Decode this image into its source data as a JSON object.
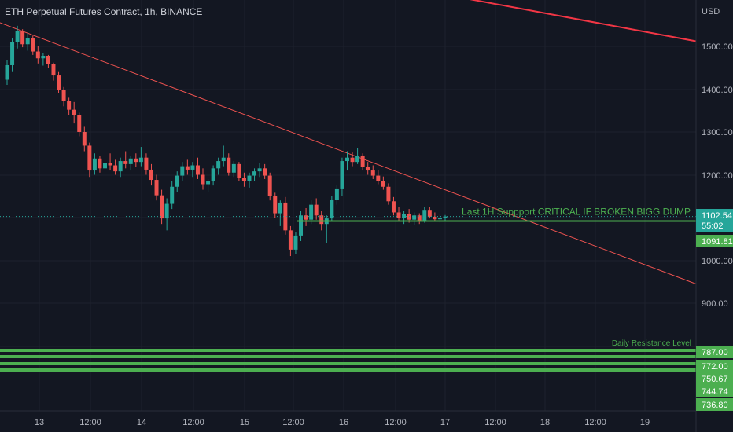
{
  "header": {
    "title": "ETH Perpetual Futures Contract, 1h, BINANCE"
  },
  "chart_data": {
    "type": "candlestick",
    "currency_label": "USD",
    "y_ticks": [
      "1500.00",
      "1400.00",
      "1300.00",
      "1200.00",
      "1000.00",
      "900.00"
    ],
    "x_ticks": [
      "13",
      "12:00",
      "14",
      "12:00",
      "15",
      "12:00",
      "16",
      "12:00",
      "17",
      "12:00",
      "18",
      "12:00",
      "19"
    ],
    "colors": {
      "up": "#26a69a",
      "down": "#ef5350",
      "trendline": "#ef5350",
      "support": "#4caf50",
      "background": "#131722"
    },
    "candles": [
      [
        1422,
        1467,
        1410,
        1456
      ],
      [
        1456,
        1520,
        1440,
        1510
      ],
      [
        1510,
        1548,
        1495,
        1535
      ],
      [
        1535,
        1540,
        1498,
        1505
      ],
      [
        1505,
        1530,
        1490,
        1520
      ],
      [
        1520,
        1525,
        1480,
        1488
      ],
      [
        1488,
        1500,
        1460,
        1472
      ],
      [
        1472,
        1485,
        1455,
        1478
      ],
      [
        1478,
        1480,
        1450,
        1458
      ],
      [
        1458,
        1462,
        1420,
        1432
      ],
      [
        1432,
        1440,
        1390,
        1398
      ],
      [
        1398,
        1405,
        1360,
        1372
      ],
      [
        1372,
        1380,
        1340,
        1352
      ],
      [
        1352,
        1370,
        1320,
        1340
      ],
      [
        1340,
        1345,
        1290,
        1300
      ],
      [
        1300,
        1312,
        1255,
        1268
      ],
      [
        1268,
        1275,
        1195,
        1210
      ],
      [
        1210,
        1250,
        1200,
        1238
      ],
      [
        1238,
        1245,
        1205,
        1215
      ],
      [
        1215,
        1240,
        1205,
        1228
      ],
      [
        1228,
        1250,
        1210,
        1222
      ],
      [
        1222,
        1235,
        1200,
        1208
      ],
      [
        1208,
        1240,
        1195,
        1232
      ],
      [
        1232,
        1255,
        1215,
        1225
      ],
      [
        1225,
        1245,
        1210,
        1238
      ],
      [
        1238,
        1250,
        1218,
        1230
      ],
      [
        1230,
        1265,
        1220,
        1240
      ],
      [
        1240,
        1250,
        1200,
        1212
      ],
      [
        1212,
        1225,
        1175,
        1188
      ],
      [
        1188,
        1200,
        1140,
        1152
      ],
      [
        1152,
        1165,
        1085,
        1098
      ],
      [
        1098,
        1145,
        1070,
        1132
      ],
      [
        1132,
        1185,
        1120,
        1172
      ],
      [
        1172,
        1208,
        1160,
        1198
      ],
      [
        1198,
        1230,
        1185,
        1220
      ],
      [
        1220,
        1235,
        1200,
        1212
      ],
      [
        1212,
        1230,
        1195,
        1222
      ],
      [
        1222,
        1240,
        1190,
        1200
      ],
      [
        1200,
        1215,
        1165,
        1178
      ],
      [
        1178,
        1190,
        1160,
        1185
      ],
      [
        1185,
        1222,
        1175,
        1215
      ],
      [
        1215,
        1240,
        1200,
        1232
      ],
      [
        1232,
        1268,
        1220,
        1240
      ],
      [
        1240,
        1250,
        1198,
        1205
      ],
      [
        1205,
        1232,
        1195,
        1225
      ],
      [
        1225,
        1230,
        1185,
        1192
      ],
      [
        1192,
        1205,
        1172,
        1185
      ],
      [
        1185,
        1205,
        1170,
        1198
      ],
      [
        1198,
        1215,
        1185,
        1208
      ],
      [
        1208,
        1228,
        1195,
        1215
      ],
      [
        1215,
        1225,
        1190,
        1198
      ],
      [
        1198,
        1205,
        1140,
        1150
      ],
      [
        1150,
        1158,
        1100,
        1110
      ],
      [
        1110,
        1140,
        1080,
        1135
      ],
      [
        1135,
        1148,
        1060,
        1070
      ],
      [
        1070,
        1080,
        1010,
        1025
      ],
      [
        1025,
        1065,
        1015,
        1058
      ],
      [
        1058,
        1115,
        1045,
        1105
      ],
      [
        1105,
        1122,
        1080,
        1095
      ],
      [
        1095,
        1140,
        1085,
        1130
      ],
      [
        1130,
        1145,
        1095,
        1105
      ],
      [
        1105,
        1115,
        1070,
        1085
      ],
      [
        1085,
        1105,
        1040,
        1098
      ],
      [
        1098,
        1150,
        1090,
        1142
      ],
      [
        1142,
        1175,
        1130,
        1168
      ],
      [
        1168,
        1240,
        1150,
        1232
      ],
      [
        1232,
        1255,
        1210,
        1240
      ],
      [
        1240,
        1252,
        1220,
        1230
      ],
      [
        1230,
        1262,
        1225,
        1245
      ],
      [
        1245,
        1250,
        1210,
        1218
      ],
      [
        1218,
        1230,
        1200,
        1210
      ],
      [
        1210,
        1222,
        1190,
        1198
      ],
      [
        1198,
        1210,
        1178,
        1185
      ],
      [
        1185,
        1196,
        1165,
        1172
      ],
      [
        1172,
        1180,
        1130,
        1138
      ],
      [
        1138,
        1148,
        1105,
        1112
      ],
      [
        1112,
        1125,
        1090,
        1100
      ],
      [
        1100,
        1115,
        1085,
        1108
      ],
      [
        1108,
        1120,
        1088,
        1095
      ],
      [
        1095,
        1112,
        1082,
        1105
      ],
      [
        1105,
        1110,
        1085,
        1092
      ],
      [
        1092,
        1125,
        1088,
        1118
      ],
      [
        1118,
        1125,
        1098,
        1102
      ],
      [
        1102,
        1112,
        1090,
        1096
      ],
      [
        1096,
        1108,
        1088,
        1100
      ],
      [
        1100,
        1106,
        1092,
        1102.54
      ]
    ],
    "trendlines": [
      {
        "name": "falling-resistance",
        "points": [
          [
            0,
            1555
          ],
          [
            885,
            945
          ]
        ],
        "color": "#ef5350",
        "width": 1
      },
      {
        "name": "upper-resistance",
        "points": [
          [
            480,
            1650
          ],
          [
            885,
            1512
          ]
        ],
        "color": "#f23645",
        "width": 2
      }
    ],
    "support_line": {
      "value": 1091.81,
      "label": "Last 1H Suppport CRITICAL IF BROKEN BIGG DUMP"
    },
    "resistance_zone": {
      "label": "Daily Resistance Level",
      "levels": [
        787.0,
        772.0,
        750.67
      ]
    },
    "price_labels": [
      {
        "value": "1102.54",
        "sub": "55:02",
        "color": "#26a69a"
      },
      {
        "value": "1091.81",
        "color": "#4caf50"
      },
      {
        "value": "787.00",
        "color": "#4caf50"
      },
      {
        "value": "772.00",
        "color": "#4caf50"
      },
      {
        "value": "750.67",
        "color": "#4caf50"
      },
      {
        "value": "744.74",
        "color": "#4caf50"
      },
      {
        "value": "736.80",
        "color": "#4caf50"
      }
    ],
    "current_price": 1102.54,
    "grid": true
  }
}
